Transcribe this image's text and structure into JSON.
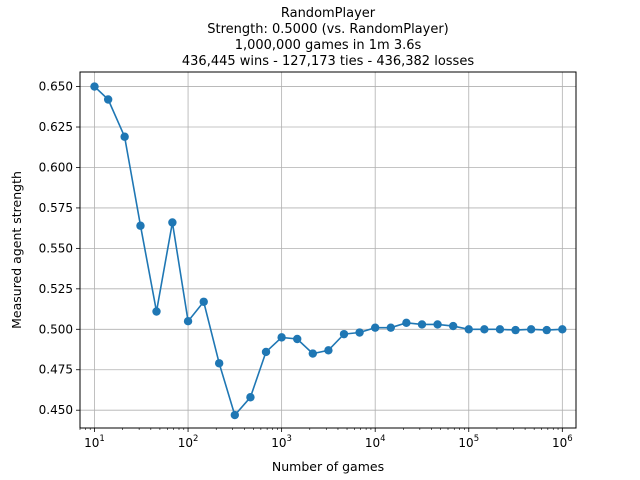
{
  "chart_data": {
    "type": "line",
    "title_lines": [
      "RandomPlayer",
      "Strength: 0.5000 (vs. RandomPlayer)",
      "1,000,000 games in 1m 3.6s",
      "436,445 wins - 127,173 ties - 436,382 losses"
    ],
    "xlabel": "Number of games",
    "ylabel": "Measured agent strength",
    "xscale": "log",
    "xlim": [
      7,
      1400000
    ],
    "ylim": [
      0.439,
      0.659
    ],
    "x_ticks": [
      {
        "value": 10,
        "base": "10",
        "exp": "1"
      },
      {
        "value": 100,
        "base": "10",
        "exp": "2"
      },
      {
        "value": 1000,
        "base": "10",
        "exp": "3"
      },
      {
        "value": 10000,
        "base": "10",
        "exp": "4"
      },
      {
        "value": 100000,
        "base": "10",
        "exp": "5"
      },
      {
        "value": 1000000,
        "base": "10",
        "exp": "6"
      }
    ],
    "y_ticks": [
      {
        "value": 0.45,
        "label": "0.450"
      },
      {
        "value": 0.475,
        "label": "0.475"
      },
      {
        "value": 0.5,
        "label": "0.500"
      },
      {
        "value": 0.525,
        "label": "0.525"
      },
      {
        "value": 0.55,
        "label": "0.550"
      },
      {
        "value": 0.575,
        "label": "0.575"
      },
      {
        "value": 0.6,
        "label": "0.600"
      },
      {
        "value": 0.625,
        "label": "0.625"
      },
      {
        "value": 0.65,
        "label": "0.650"
      }
    ],
    "grid": true,
    "series": [
      {
        "color": "#1f77b4",
        "marker": "circle",
        "x": [
          10,
          14,
          21,
          31,
          46,
          68,
          100,
          147,
          215,
          316,
          464,
          681,
          1000,
          1468,
          2154,
          3162,
          4642,
          6813,
          10000,
          14678,
          21544,
          31623,
          46416,
          68129,
          100000,
          146780,
          215443,
          316228,
          464159,
          681292,
          1000000
        ],
        "y": [
          0.65,
          0.642,
          0.619,
          0.564,
          0.511,
          0.566,
          0.505,
          0.517,
          0.479,
          0.447,
          0.458,
          0.486,
          0.495,
          0.494,
          0.485,
          0.487,
          0.497,
          0.498,
          0.501,
          0.501,
          0.504,
          0.503,
          0.503,
          0.502,
          0.5,
          0.5,
          0.5,
          0.4995,
          0.5,
          0.4995,
          0.5
        ]
      }
    ]
  }
}
